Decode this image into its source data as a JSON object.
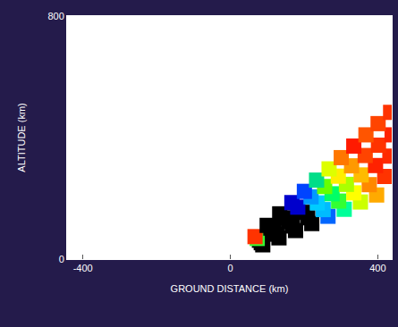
{
  "chart_data": {
    "type": "scatter",
    "xlabel": "GROUND DISTANCE (km)",
    "ylabel": "ALTITUDE (km)",
    "xlim": [
      -443,
      438
    ],
    "ylim": [
      0,
      800
    ],
    "xticks": [
      -400,
      0,
      400
    ],
    "yticks": [
      0,
      800
    ],
    "grid": false,
    "marker": "square",
    "x": [
      88,
      84,
      79,
      73,
      67,
      132,
      126,
      118,
      110,
      100,
      177,
      168,
      158,
      146,
      134,
      221,
      210,
      197,
      183,
      167,
      265,
      252,
      236,
      219,
      201,
      309,
      294,
      276,
      256,
      234,
      353,
      335,
      315,
      293,
      268,
      397,
      377,
      355,
      329,
      301,
      419,
      394,
      366,
      335,
      433,
      402,
      368,
      439,
      401,
      435
    ],
    "y": [
      47,
      54,
      62,
      68,
      74,
      70,
      82,
      92,
      102,
      111,
      94,
      109,
      123,
      136,
      149,
      117,
      136,
      154,
      171,
      186,
      141,
      163,
      185,
      205,
      223,
      164,
      191,
      215,
      239,
      260,
      188,
      218,
      246,
      273,
      297,
      211,
      245,
      277,
      307,
      334,
      272,
      308,
      341,
      372,
      339,
      375,
      409,
      409,
      446,
      483
    ],
    "colors": [
      "#000000",
      "#000000",
      "#000000",
      "#33ff33",
      "#ff3300",
      "#000000",
      "#000000",
      "#000000",
      "#000000",
      "#000000",
      "#000000",
      "#000000",
      "#000000",
      "#000000",
      "#000000",
      "#000000",
      "#000000",
      "#000000",
      "#0000cc",
      "#0000cc",
      "#0066ff",
      "#00bbff",
      "#00ccff",
      "#0099ff",
      "#0044ff",
      "#00ff99",
      "#33ff33",
      "#00ff66",
      "#66ff00",
      "#00dd88",
      "#ccff00",
      "#ffff00",
      "#aaff00",
      "#ffee00",
      "#ddff00",
      "#ffaa00",
      "#ff8800",
      "#ffbb00",
      "#ff9900",
      "#ff7700",
      "#ff3300",
      "#ff2200",
      "#ff4400",
      "#ff1a00",
      "#ff2a00",
      "#ff3300",
      "#ff5500",
      "#ff2200",
      "#ff4400",
      "#ff3300"
    ]
  }
}
